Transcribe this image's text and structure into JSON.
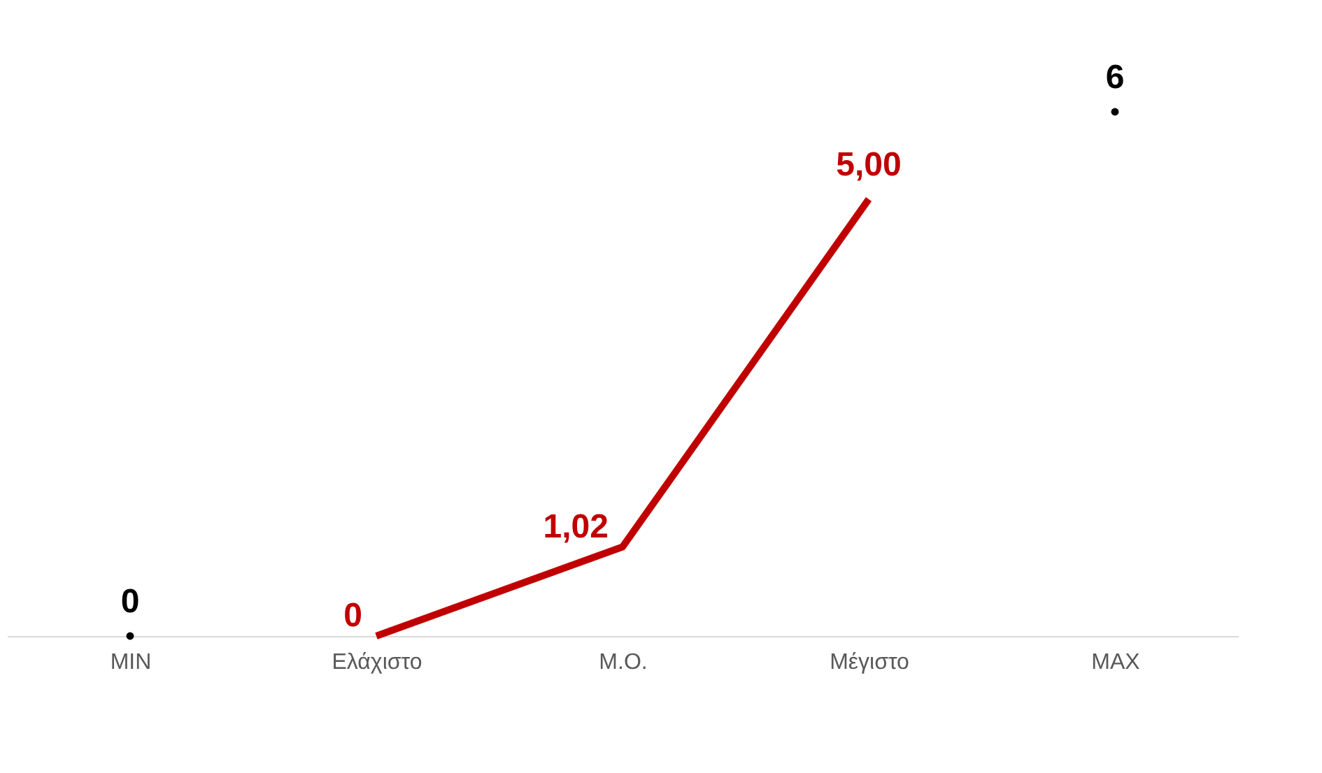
{
  "chart_data": {
    "type": "line",
    "categories": [
      "MIN",
      "Ελάχιστο",
      "Μ.Ο.",
      "Μέγιστο",
      "MAX"
    ],
    "series": [
      {
        "type": "scatter",
        "marker": "circle",
        "color": "#000000",
        "values": [
          0,
          null,
          null,
          null,
          6
        ],
        "value_labels": [
          "0",
          null,
          null,
          null,
          "6"
        ]
      },
      {
        "marker": "none",
        "color": "#c00000",
        "values": [
          null,
          0,
          1.02,
          5.0,
          null
        ],
        "value_labels": [
          null,
          "0",
          "1,02",
          "5,00",
          null
        ]
      }
    ],
    "grid": false
  }
}
